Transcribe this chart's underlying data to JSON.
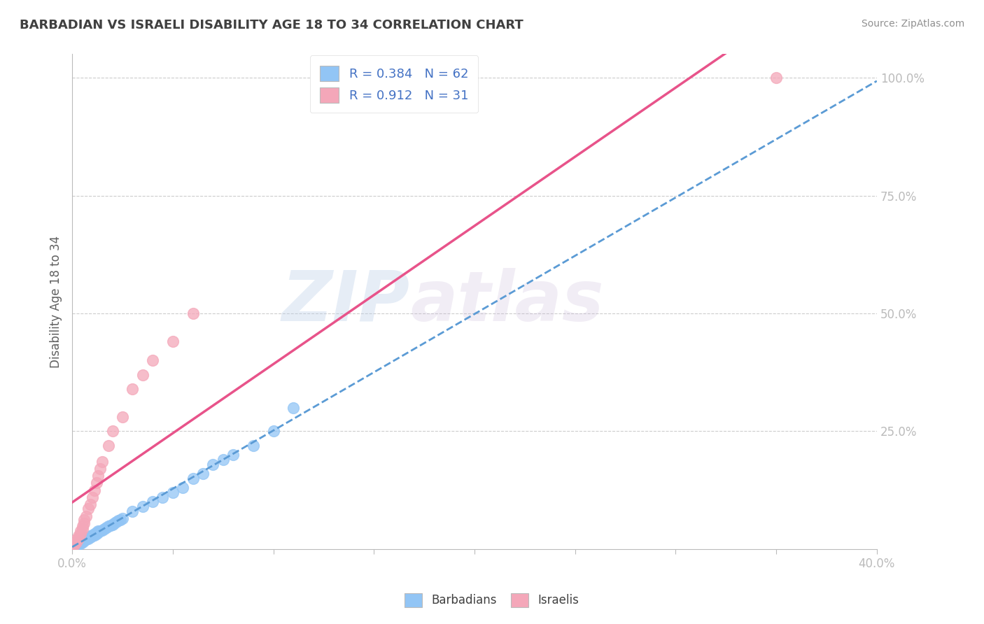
{
  "title": "BARBADIAN VS ISRAELI DISABILITY AGE 18 TO 34 CORRELATION CHART",
  "source": "Source: ZipAtlas.com",
  "ylabel": "Disability Age 18 to 34",
  "xlim": [
    0.0,
    0.4
  ],
  "ylim": [
    0.0,
    1.05
  ],
  "xticks": [
    0.0,
    0.05,
    0.1,
    0.15,
    0.2,
    0.25,
    0.3,
    0.35,
    0.4
  ],
  "xticklabels": [
    "0.0%",
    "",
    "",
    "",
    "",
    "",
    "",
    "",
    "40.0%"
  ],
  "ytick_positions": [
    0.25,
    0.5,
    0.75,
    1.0
  ],
  "ytick_labels": [
    "25.0%",
    "50.0%",
    "75.0%",
    "100.0%"
  ],
  "barbadian_color": "#92C5F5",
  "israeli_color": "#F4A7B9",
  "barbadian_R": 0.384,
  "barbadian_N": 62,
  "israeli_R": 0.912,
  "israeli_N": 31,
  "barbadian_x": [
    0.0,
    0.001,
    0.001,
    0.001,
    0.001,
    0.002,
    0.002,
    0.002,
    0.002,
    0.003,
    0.003,
    0.003,
    0.004,
    0.004,
    0.004,
    0.005,
    0.005,
    0.005,
    0.006,
    0.006,
    0.006,
    0.007,
    0.007,
    0.007,
    0.008,
    0.008,
    0.009,
    0.009,
    0.01,
    0.01,
    0.011,
    0.011,
    0.012,
    0.012,
    0.013,
    0.013,
    0.014,
    0.015,
    0.016,
    0.017,
    0.018,
    0.019,
    0.02,
    0.021,
    0.022,
    0.023,
    0.024,
    0.025,
    0.03,
    0.035,
    0.04,
    0.045,
    0.05,
    0.055,
    0.06,
    0.065,
    0.07,
    0.075,
    0.08,
    0.09,
    0.1,
    0.11
  ],
  "barbadian_y": [
    0.005,
    0.005,
    0.008,
    0.01,
    0.012,
    0.008,
    0.01,
    0.012,
    0.015,
    0.01,
    0.012,
    0.015,
    0.012,
    0.015,
    0.018,
    0.015,
    0.018,
    0.02,
    0.018,
    0.02,
    0.022,
    0.02,
    0.022,
    0.025,
    0.022,
    0.025,
    0.025,
    0.028,
    0.028,
    0.03,
    0.03,
    0.032,
    0.032,
    0.035,
    0.035,
    0.038,
    0.038,
    0.04,
    0.042,
    0.045,
    0.048,
    0.05,
    0.052,
    0.055,
    0.058,
    0.06,
    0.062,
    0.065,
    0.08,
    0.09,
    0.1,
    0.11,
    0.12,
    0.13,
    0.15,
    0.16,
    0.18,
    0.19,
    0.2,
    0.22,
    0.25,
    0.3
  ],
  "israeli_x": [
    0.0,
    0.001,
    0.001,
    0.002,
    0.002,
    0.003,
    0.003,
    0.004,
    0.004,
    0.005,
    0.005,
    0.006,
    0.006,
    0.007,
    0.008,
    0.009,
    0.01,
    0.011,
    0.012,
    0.013,
    0.014,
    0.015,
    0.018,
    0.02,
    0.025,
    0.03,
    0.035,
    0.04,
    0.05,
    0.06,
    0.35
  ],
  "israeli_y": [
    0.005,
    0.008,
    0.012,
    0.015,
    0.02,
    0.022,
    0.028,
    0.032,
    0.038,
    0.042,
    0.048,
    0.055,
    0.062,
    0.07,
    0.085,
    0.095,
    0.11,
    0.125,
    0.14,
    0.155,
    0.17,
    0.185,
    0.22,
    0.25,
    0.28,
    0.34,
    0.37,
    0.4,
    0.44,
    0.5,
    1.0
  ],
  "watermark_part1": "ZIP",
  "watermark_part2": "atlas",
  "background_color": "#FFFFFF",
  "grid_color": "#CCCCCC",
  "axis_color": "#BBBBBB",
  "label_color": "#4472C4",
  "title_color": "#404040"
}
